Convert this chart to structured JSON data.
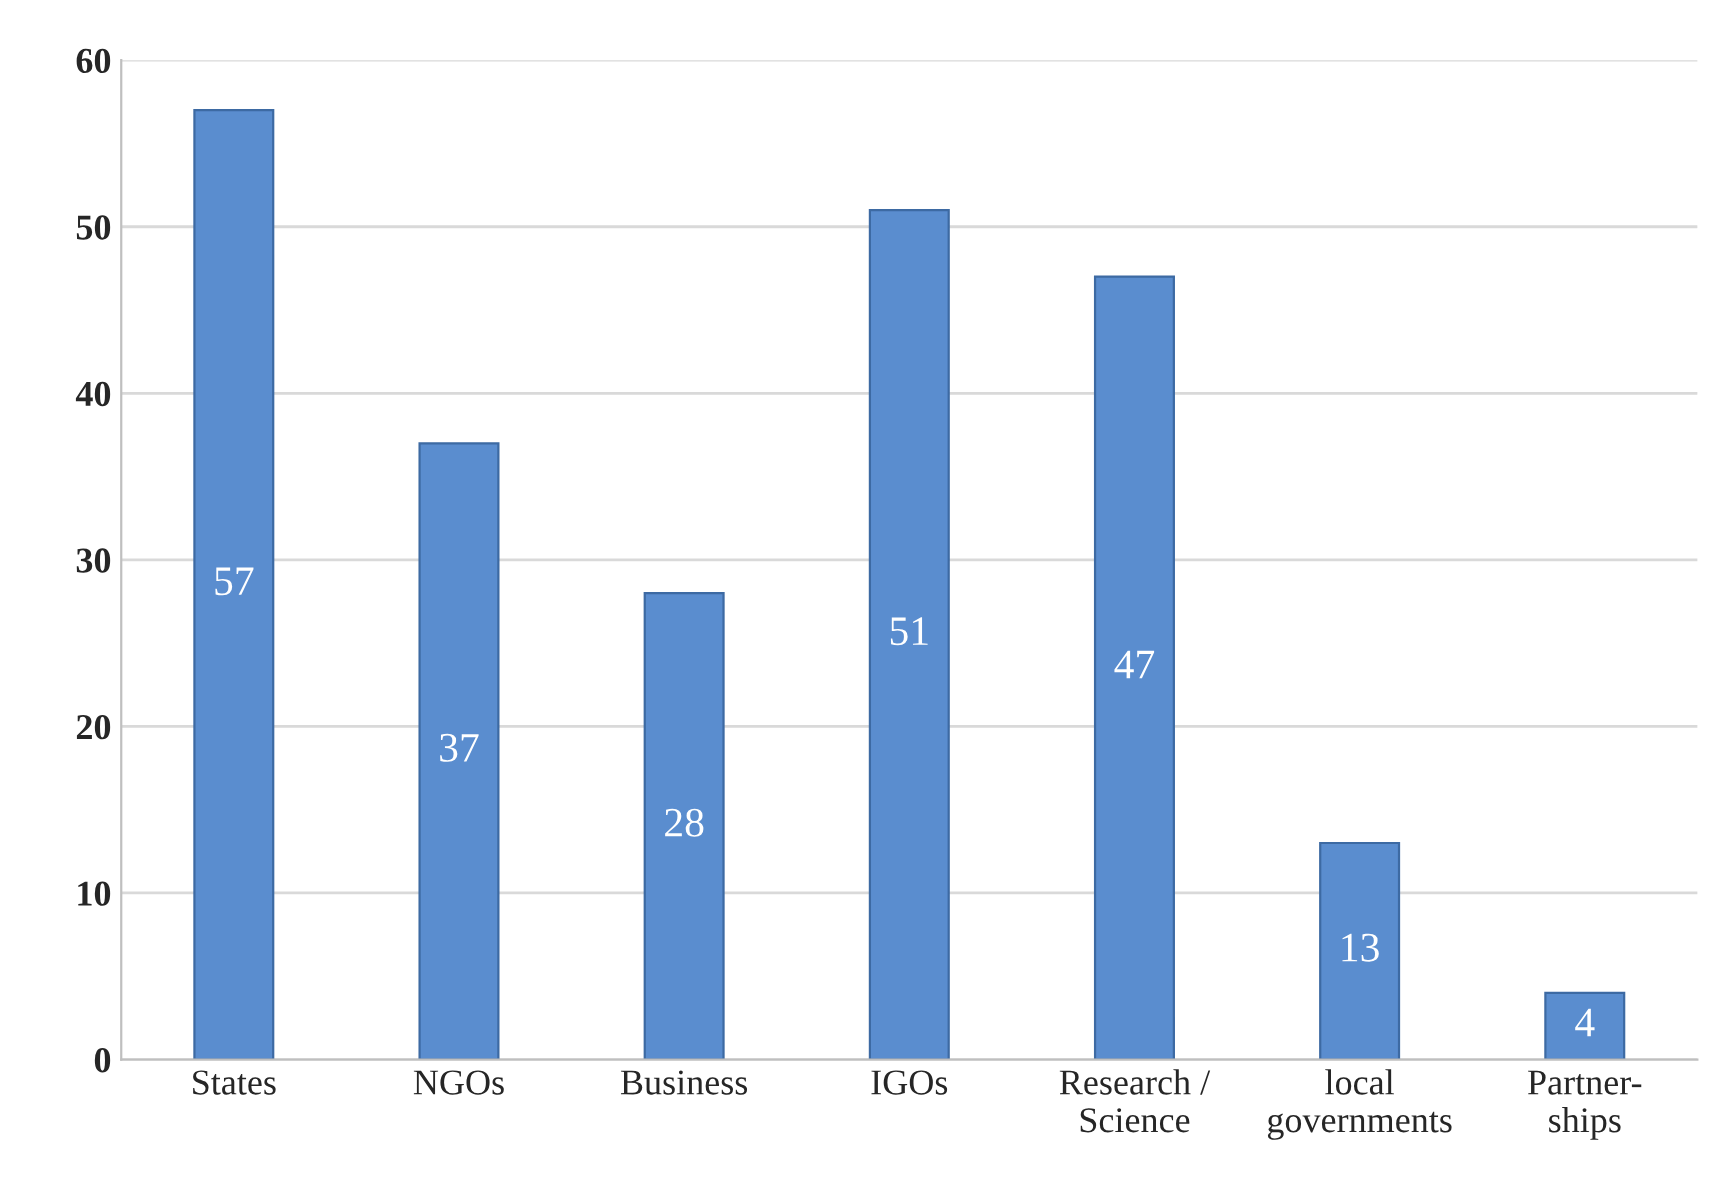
{
  "chart_data": {
    "type": "bar",
    "categories": [
      "States",
      "NGOs",
      "Business",
      "IGOs",
      "Research /\nScience",
      "local\ngovernments",
      "Partner-\nships"
    ],
    "values": [
      57,
      37,
      28,
      51,
      47,
      13,
      4
    ],
    "color": "#5a8dcf",
    "ylim": [
      0,
      60
    ],
    "yticks": [
      0,
      10,
      20,
      30,
      40,
      50,
      60
    ],
    "grid": "y",
    "data_labels": true
  }
}
